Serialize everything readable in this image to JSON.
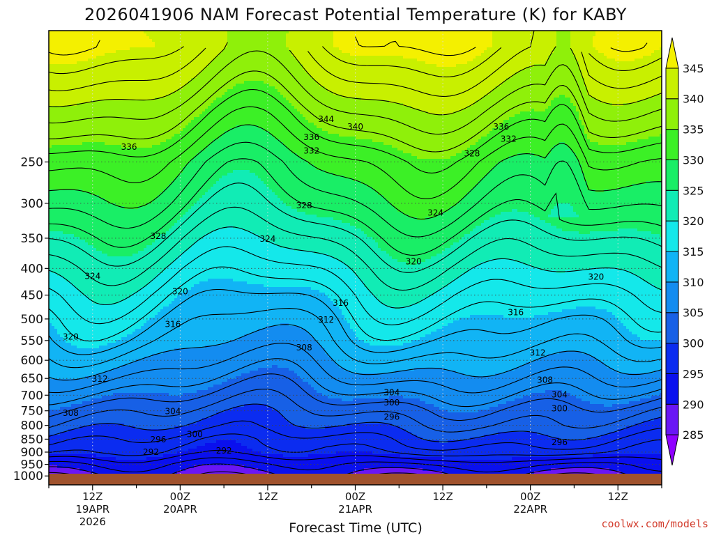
{
  "chart_data": {
    "type": "heatmap",
    "title": "2026041906 NAM Forecast Potential Temperature (K) for KABY",
    "xlabel": "Forecast Time (UTC)",
    "ylabel": "",
    "y_ticks": [
      "250",
      "300",
      "350",
      "400",
      "450",
      "500",
      "550",
      "600",
      "650",
      "700",
      "750",
      "800",
      "850",
      "900",
      "950",
      "1000"
    ],
    "x_ticks": [
      {
        "hours": 6,
        "label": "12Z",
        "sub": "19APR",
        "sub2": "2026"
      },
      {
        "hours": 18,
        "label": "00Z",
        "sub": "20APR",
        "sub2": ""
      },
      {
        "hours": 30,
        "label": "12Z",
        "sub": "",
        "sub2": ""
      },
      {
        "hours": 42,
        "label": "00Z",
        "sub": "21APR",
        "sub2": ""
      },
      {
        "hours": 54,
        "label": "12Z",
        "sub": "",
        "sub2": ""
      },
      {
        "hours": 66,
        "label": "00Z",
        "sub": "22APR",
        "sub2": ""
      },
      {
        "hours": 78,
        "label": "12Z",
        "sub": "",
        "sub2": ""
      }
    ],
    "x_range_hours": [
      0,
      84
    ],
    "y_range_hPa": [
      1040,
      140
    ],
    "colorbar": {
      "levels": [
        "285",
        "290",
        "295",
        "300",
        "305",
        "310",
        "315",
        "320",
        "325",
        "330",
        "335",
        "340",
        "345"
      ],
      "colors": [
        "#8f00ff",
        "#6a16f5",
        "#0a10ee",
        "#0b2cf0",
        "#1760e6",
        "#138cf0",
        "#11b4f5",
        "#14e8ea",
        "#11ecb5",
        "#19ee66",
        "#3cf026",
        "#8ff00a",
        "#c8f000",
        "#f4f000"
      ]
    },
    "grid": true,
    "contour_labels": [
      {
        "text": "344",
        "hours": 38,
        "hpa": 207
      },
      {
        "text": "340",
        "hours": 42,
        "hpa": 214
      },
      {
        "text": "336",
        "hours": 62,
        "hpa": 214
      },
      {
        "text": "336",
        "hours": 11,
        "hpa": 234
      },
      {
        "text": "336",
        "hours": 36,
        "hpa": 224
      },
      {
        "text": "332",
        "hours": 36,
        "hpa": 238
      },
      {
        "text": "332",
        "hours": 63,
        "hpa": 226
      },
      {
        "text": "328",
        "hours": 58,
        "hpa": 241
      },
      {
        "text": "328",
        "hours": 35,
        "hpa": 303
      },
      {
        "text": "324",
        "hours": 53,
        "hpa": 313
      },
      {
        "text": "328",
        "hours": 15,
        "hpa": 347
      },
      {
        "text": "324",
        "hours": 30,
        "hpa": 351
      },
      {
        "text": "320",
        "hours": 50,
        "hpa": 388
      },
      {
        "text": "324",
        "hours": 6,
        "hpa": 414
      },
      {
        "text": "320",
        "hours": 75,
        "hpa": 415
      },
      {
        "text": "320",
        "hours": 18,
        "hpa": 443
      },
      {
        "text": "316",
        "hours": 40,
        "hpa": 466
      },
      {
        "text": "316",
        "hours": 64,
        "hpa": 486
      },
      {
        "text": "312",
        "hours": 38,
        "hpa": 502
      },
      {
        "text": "316",
        "hours": 17,
        "hpa": 512
      },
      {
        "text": "320",
        "hours": 3,
        "hpa": 541
      },
      {
        "text": "308",
        "hours": 35,
        "hpa": 567
      },
      {
        "text": "312",
        "hours": 67,
        "hpa": 581
      },
      {
        "text": "312",
        "hours": 7,
        "hpa": 652
      },
      {
        "text": "308",
        "hours": 68,
        "hpa": 655
      },
      {
        "text": "304",
        "hours": 47,
        "hpa": 692
      },
      {
        "text": "304",
        "hours": 70,
        "hpa": 698
      },
      {
        "text": "300",
        "hours": 47,
        "hpa": 724
      },
      {
        "text": "304",
        "hours": 17,
        "hpa": 752
      },
      {
        "text": "300",
        "hours": 70,
        "hpa": 743
      },
      {
        "text": "308",
        "hours": 3,
        "hpa": 758
      },
      {
        "text": "296",
        "hours": 47,
        "hpa": 770
      },
      {
        "text": "300",
        "hours": 20,
        "hpa": 832
      },
      {
        "text": "296",
        "hours": 15,
        "hpa": 852
      },
      {
        "text": "296",
        "hours": 70,
        "hpa": 862
      },
      {
        "text": "292",
        "hours": 14,
        "hpa": 900
      },
      {
        "text": "292",
        "hours": 24,
        "hpa": 895
      }
    ]
  },
  "footer": {
    "credit": "coolwx.com/models"
  }
}
